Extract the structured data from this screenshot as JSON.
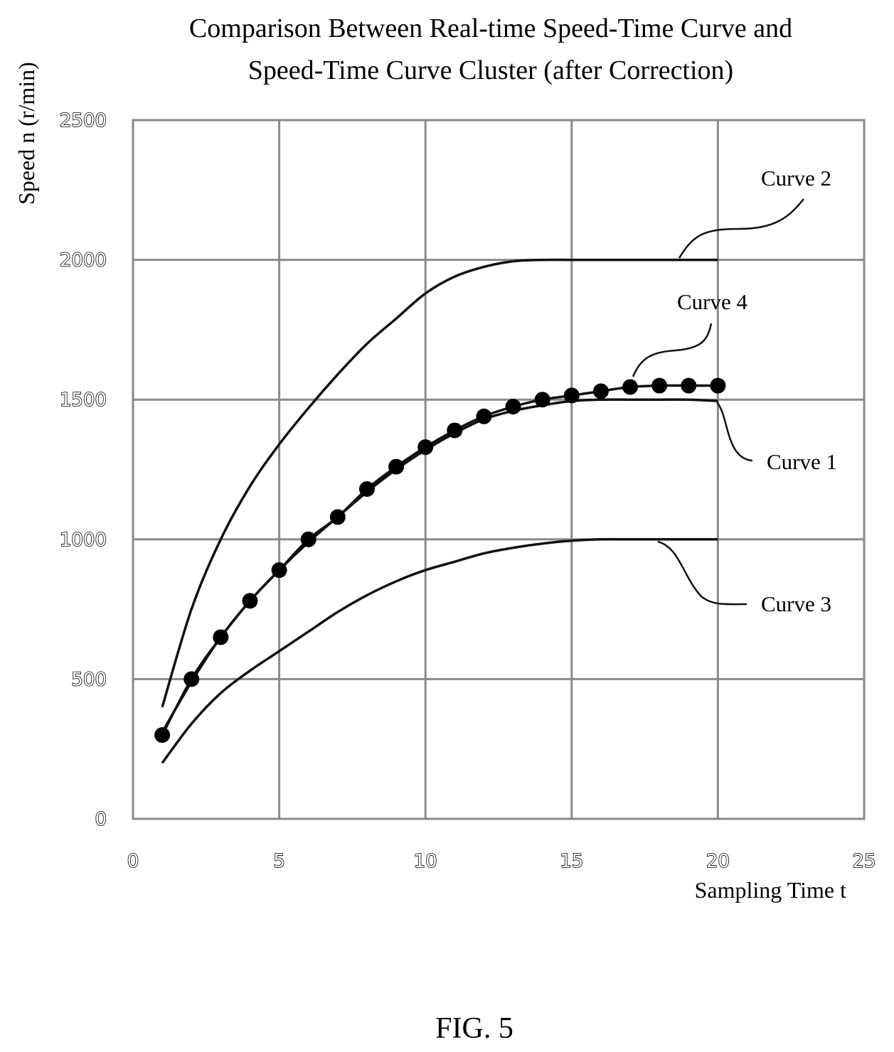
{
  "chart_data": {
    "type": "line",
    "title": [
      "Comparison Between Real-time Speed-Time Curve and",
      "Speed-Time Curve Cluster (after Correction)"
    ],
    "xlabel": "Sampling Time t",
    "ylabel": "Speed n (r/min)",
    "xlim": [
      0,
      25
    ],
    "ylim": [
      0,
      2500
    ],
    "x_ticks": [
      "0",
      "5",
      "10",
      "15",
      "20",
      "25"
    ],
    "y_ticks": [
      "0",
      "500",
      "1000",
      "1500",
      "2000",
      "2500"
    ],
    "grid": true,
    "series": [
      {
        "name": "Curve 1",
        "markers": false,
        "x": [
          1,
          2,
          3,
          4,
          5,
          6,
          7,
          8,
          9,
          10,
          11,
          12,
          13,
          14,
          15,
          16,
          17,
          18,
          19,
          20
        ],
        "y": [
          310,
          490,
          650,
          780,
          890,
          990,
          1080,
          1170,
          1250,
          1320,
          1380,
          1430,
          1460,
          1480,
          1495,
          1500,
          1500,
          1500,
          1500,
          1495
        ]
      },
      {
        "name": "Curve 2",
        "markers": false,
        "x": [
          1,
          2,
          3,
          4,
          5,
          6,
          7,
          8,
          9,
          10,
          11,
          12,
          13,
          14,
          15,
          16,
          17,
          18,
          19,
          20
        ],
        "y": [
          400,
          750,
          1000,
          1190,
          1340,
          1470,
          1590,
          1700,
          1790,
          1880,
          1940,
          1975,
          1995,
          2000,
          2000,
          2000,
          2000,
          2000,
          2000,
          2000
        ]
      },
      {
        "name": "Curve 3",
        "markers": false,
        "x": [
          1,
          2,
          3,
          4,
          5,
          6,
          7,
          8,
          9,
          10,
          11,
          12,
          13,
          14,
          15,
          16,
          17,
          18,
          19,
          20
        ],
        "y": [
          200,
          340,
          450,
          530,
          600,
          670,
          740,
          800,
          850,
          890,
          920,
          950,
          970,
          985,
          995,
          1000,
          1000,
          1000,
          1000,
          1000
        ]
      },
      {
        "name": "Curve 4",
        "markers": true,
        "x": [
          1,
          2,
          3,
          4,
          5,
          6,
          7,
          8,
          9,
          10,
          11,
          12,
          13,
          14,
          15,
          16,
          17,
          18,
          19,
          20
        ],
        "y": [
          300,
          500,
          650,
          780,
          890,
          1000,
          1080,
          1180,
          1260,
          1330,
          1390,
          1440,
          1475,
          1500,
          1515,
          1530,
          1545,
          1550,
          1550,
          1550
        ]
      }
    ]
  },
  "figure_label": "FIG. 5"
}
